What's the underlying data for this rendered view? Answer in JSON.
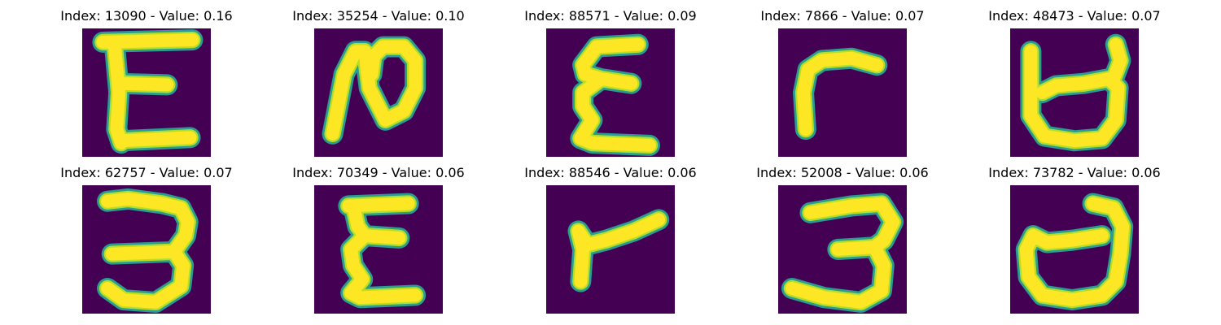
{
  "colors": {
    "background": "#440154",
    "stroke_edge": "#2a9d8f",
    "stroke_core": "#fde725",
    "stroke_mid": "#b5de2b"
  },
  "panels": [
    {
      "label": "Index: 13090 - Value: 0.16",
      "index": "13090",
      "value": 0.16
    },
    {
      "label": "Index: 35254 - Value: 0.10",
      "index": "35254",
      "value": 0.1
    },
    {
      "label": "Index: 88571 - Value: 0.09",
      "index": "88571",
      "value": 0.09
    },
    {
      "label": "Index: 7866 - Value: 0.07",
      "index": "7866",
      "value": 0.07
    },
    {
      "label": "Index: 48473 - Value: 0.07",
      "index": "48473",
      "value": 0.07
    },
    {
      "label": "Index: 62757 - Value: 0.07",
      "index": "62757",
      "value": 0.07
    },
    {
      "label": "Index: 70349 - Value: 0.06",
      "index": "70349",
      "value": 0.06
    },
    {
      "label": "Index: 88546 - Value: 0.06",
      "index": "88546",
      "value": 0.06
    },
    {
      "label": "Index: 52008 - Value: 0.06",
      "index": "52008",
      "value": 0.06
    },
    {
      "label": "Index: 73782 - Value: 0.06",
      "index": "73782",
      "value": 0.06
    }
  ]
}
